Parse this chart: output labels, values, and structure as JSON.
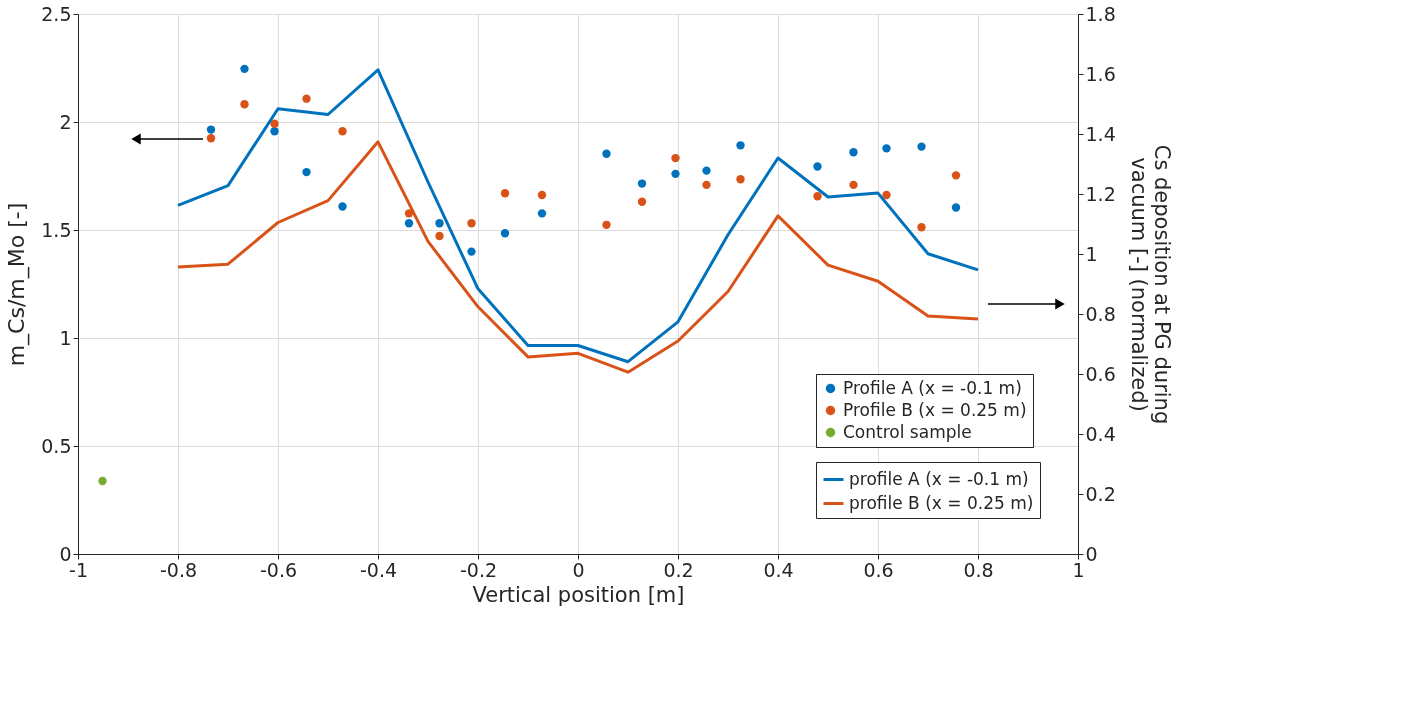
{
  "chart_data": {
    "type": "scatter",
    "xlabel": "Vertical position [m]",
    "ylabel": "m_Cs/m_Mo [-]",
    "y2label": "Cs deposition at PG during\nvacuum [-] (normalized)",
    "xlim": [
      -1,
      1
    ],
    "xticks": [
      -1,
      -0.8,
      -0.6,
      -0.4,
      -0.2,
      0,
      0.2,
      0.4,
      0.6,
      0.8,
      1
    ],
    "ylim": [
      0,
      2.5
    ],
    "yticks": [
      0,
      0.5,
      1,
      1.5,
      2,
      2.5
    ],
    "y2lim": [
      0,
      1.8
    ],
    "y2ticks": [
      0,
      0.2,
      0.4,
      0.6,
      0.8,
      1,
      1.2,
      1.4,
      1.6,
      1.8
    ],
    "grid": true,
    "legend": "bottom right",
    "series": [
      {
        "name": "Profile A (x = -0.1 m)",
        "type": "scatter",
        "marker": "circle",
        "color": "#0072bd",
        "x": [
          -0.734,
          -0.667,
          -0.607,
          -0.543,
          -0.471,
          -0.338,
          -0.277,
          -0.213,
          -0.146,
          -0.072,
          0.057,
          0.128,
          0.195,
          0.257,
          0.325,
          0.479,
          0.551,
          0.617,
          0.687,
          0.756
        ],
        "values": [
          1.965,
          2.246,
          1.957,
          1.768,
          1.609,
          1.531,
          1.531,
          1.4,
          1.485,
          1.577,
          1.853,
          1.715,
          1.76,
          1.775,
          1.892,
          1.794,
          1.86,
          1.878,
          1.886,
          1.604
        ]
      },
      {
        "name": "Profile B (x = 0.25 m)",
        "type": "scatter",
        "marker": "circle",
        "color": "#d95319",
        "x": [
          -0.734,
          -0.667,
          -0.607,
          -0.543,
          -0.471,
          -0.338,
          -0.277,
          -0.213,
          -0.146,
          -0.072,
          0.057,
          0.128,
          0.195,
          0.257,
          0.325,
          0.479,
          0.551,
          0.617,
          0.687,
          0.756
        ],
        "values": [
          1.925,
          2.082,
          1.992,
          2.108,
          1.957,
          1.577,
          1.472,
          1.531,
          1.67,
          1.662,
          1.524,
          1.631,
          1.833,
          1.709,
          1.735,
          1.656,
          1.709,
          1.662,
          1.513,
          1.753
        ]
      },
      {
        "name": "Control sample",
        "type": "scatter",
        "marker": "circle",
        "color": "#77ac30",
        "x": [
          -0.951
        ],
        "values": [
          0.338
        ]
      },
      {
        "name": "profile A (x = -0.1 m)",
        "type": "line",
        "axis": "y2",
        "line_style": "solid",
        "color": "#0072bd",
        "x": [
          -0.8,
          -0.7,
          -0.6,
          -0.5,
          -0.4,
          -0.3,
          -0.2,
          -0.1,
          0,
          0.1,
          0.2,
          0.3,
          0.4,
          0.5,
          0.6,
          0.7,
          0.8
        ],
        "values": [
          1.162,
          1.228,
          1.484,
          1.465,
          1.614,
          1.24,
          0.884,
          0.695,
          0.695,
          0.641,
          0.774,
          1.064,
          1.32,
          1.19,
          1.203,
          1.001,
          0.947
        ]
      },
      {
        "name": "profile B (x = 0.25 m)",
        "type": "line",
        "axis": "y2",
        "line_style": "solid",
        "color": "#d95319",
        "x": [
          -0.8,
          -0.7,
          -0.6,
          -0.5,
          -0.4,
          -0.3,
          -0.2,
          -0.1,
          0,
          0.1,
          0.2,
          0.3,
          0.4,
          0.5,
          0.6,
          0.7,
          0.8
        ],
        "values": [
          0.957,
          0.966,
          1.105,
          1.178,
          1.374,
          1.042,
          0.824,
          0.657,
          0.669,
          0.606,
          0.71,
          0.875,
          1.127,
          0.963,
          0.909,
          0.793,
          0.783
        ]
      }
    ]
  }
}
